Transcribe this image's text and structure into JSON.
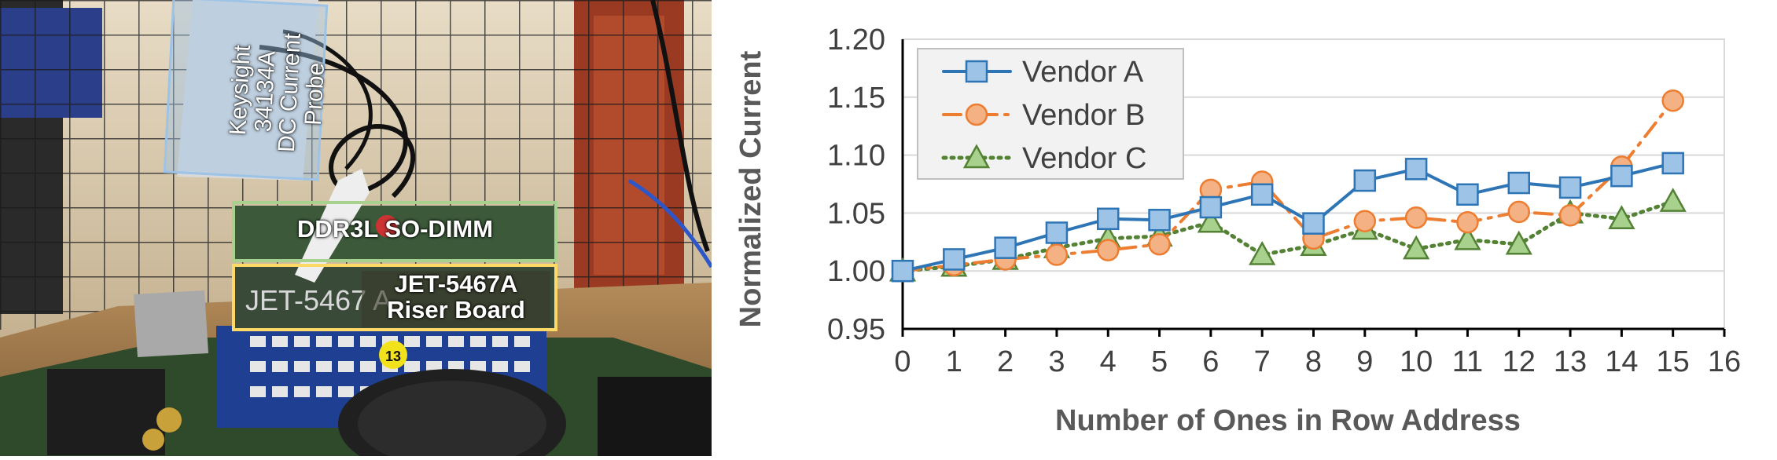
{
  "colors": {
    "vendor_a": "#2e75b6",
    "vendor_a_fill": "#9dc3e6",
    "vendor_b": "#ed7d31",
    "vendor_b_fill": "#f4b183",
    "vendor_c": "#548235",
    "vendor_c_fill": "#a9d18e",
    "sodimm_box": "#a9d18e",
    "riser_box": "#ffd966",
    "probe_box": "#9dc3e6"
  },
  "photo": {
    "probe_label_lines": [
      "Keysight",
      "34134A",
      "DC Current",
      "Probe"
    ],
    "sodimm_label": "DDR3L SO-DIMM",
    "riser_label_lines": [
      "JET-5467A",
      "Riser Board"
    ],
    "board_marking": "JET-5467 A",
    "slot_number": "13"
  },
  "chart_data": {
    "type": "line",
    "x": [
      0,
      1,
      2,
      3,
      4,
      5,
      6,
      7,
      8,
      9,
      10,
      11,
      12,
      13,
      14,
      15
    ],
    "series": [
      {
        "name": "Vendor A",
        "marker": "square",
        "line_style": "solid",
        "values": [
          1.0,
          1.01,
          1.02,
          1.033,
          1.045,
          1.044,
          1.055,
          1.066,
          1.041,
          1.078,
          1.088,
          1.066,
          1.076,
          1.072,
          1.082,
          1.093
        ]
      },
      {
        "name": "Vendor B",
        "marker": "circle",
        "line_style": "dash-dot",
        "values": [
          1.0,
          1.005,
          1.01,
          1.014,
          1.018,
          1.023,
          1.07,
          1.077,
          1.028,
          1.043,
          1.046,
          1.042,
          1.051,
          1.048,
          1.09,
          1.147
        ]
      },
      {
        "name": "Vendor C",
        "marker": "triangle",
        "line_style": "dotted",
        "values": [
          1.0,
          1.004,
          1.01,
          1.02,
          1.028,
          1.03,
          1.042,
          1.014,
          1.022,
          1.036,
          1.019,
          1.027,
          1.023,
          1.05,
          1.045,
          1.06
        ]
      }
    ],
    "xlabel": "Number of Ones in Row Address",
    "ylabel": "Normalized Current",
    "xlim": [
      0,
      16
    ],
    "ylim": [
      0.95,
      1.2
    ],
    "x_ticks": [
      "0",
      "1",
      "2",
      "3",
      "4",
      "5",
      "6",
      "7",
      "8",
      "9",
      "10",
      "11",
      "12",
      "13",
      "14",
      "15",
      "16"
    ],
    "y_ticks": [
      "0.95",
      "1.00",
      "1.05",
      "1.10",
      "1.15",
      "1.20"
    ],
    "grid": "horizontal",
    "legend_position": "top-left"
  }
}
